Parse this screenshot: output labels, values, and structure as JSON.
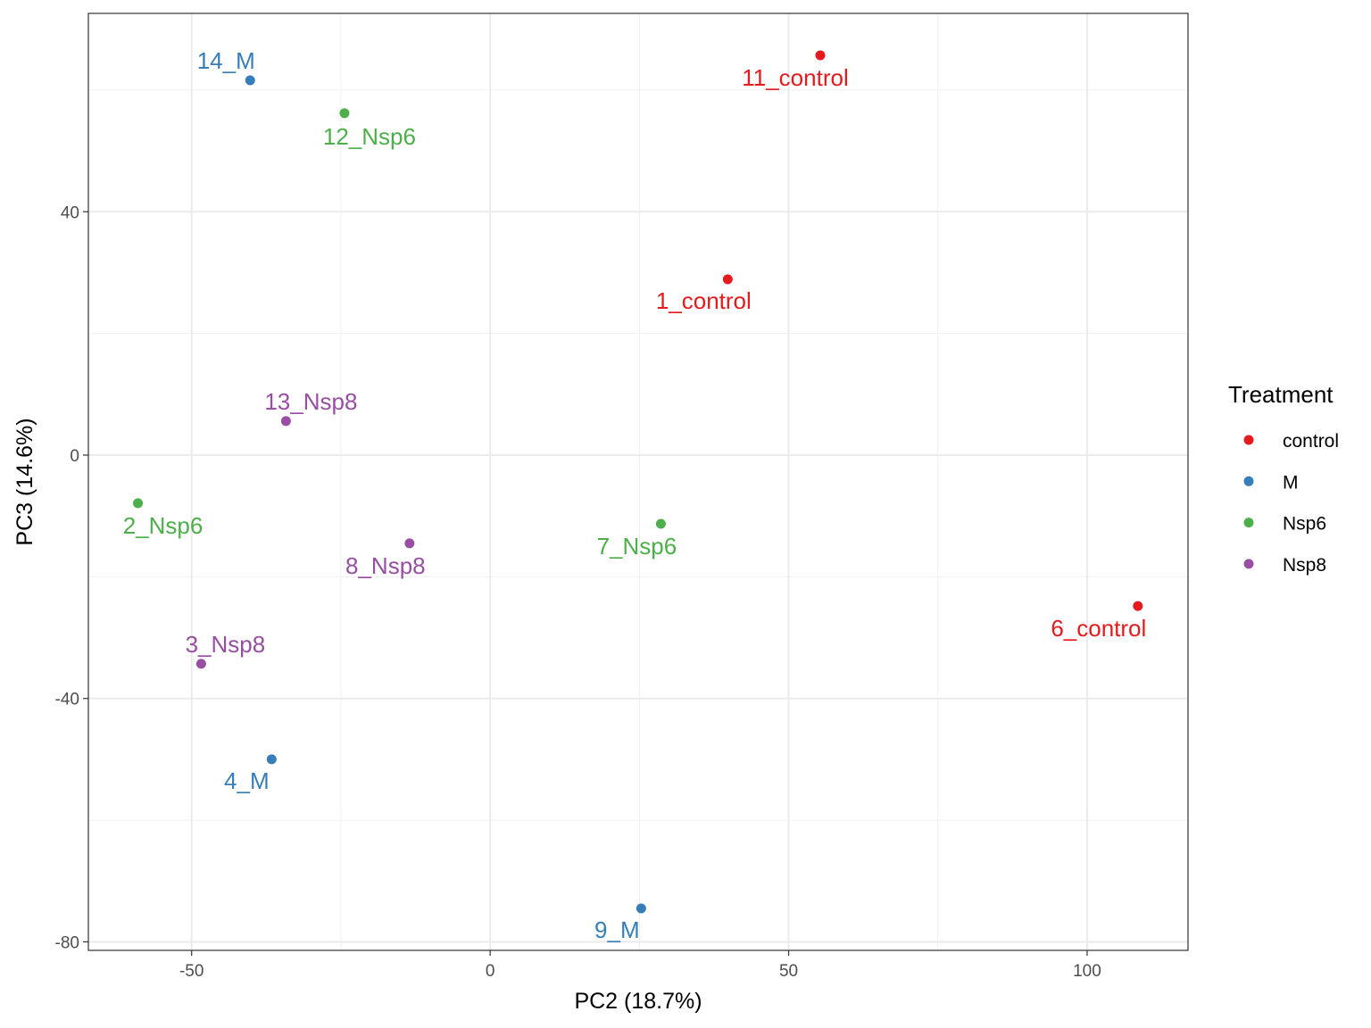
{
  "chart_data": {
    "type": "scatter",
    "title": "",
    "xlabel": "PC2 (18.7%)",
    "ylabel": "PC3 (14.6%)",
    "xlim": [
      -67.3,
      116.9
    ],
    "ylim": [
      -81.4,
      72.6
    ],
    "xticks": [
      -50,
      0,
      50,
      100
    ],
    "yticks": [
      -80,
      -40,
      0,
      40
    ],
    "xminor": [
      -25,
      25,
      75
    ],
    "yminor": [
      -60,
      -20,
      20,
      60
    ],
    "grid": true,
    "legend": {
      "title": "Treatment",
      "placement": "right",
      "entries": [
        {
          "name": "control",
          "color": "#E41A1C"
        },
        {
          "name": "M",
          "color": "#377EB8"
        },
        {
          "name": "Nsp6",
          "color": "#4DAF4A"
        },
        {
          "name": "Nsp8",
          "color": "#984EA3"
        }
      ]
    },
    "points": [
      {
        "label": "14_M",
        "group": "M",
        "x": -40.2,
        "y": 61.6
      },
      {
        "label": "12_Nsp6",
        "group": "Nsp6",
        "x": -24.4,
        "y": 56.2
      },
      {
        "label": "11_control",
        "group": "control",
        "x": 55.3,
        "y": 65.7
      },
      {
        "label": "1_control",
        "group": "control",
        "x": 39.8,
        "y": 28.9
      },
      {
        "label": "13_Nsp8",
        "group": "Nsp8",
        "x": -34.2,
        "y": 5.6
      },
      {
        "label": "2_Nsp6",
        "group": "Nsp6",
        "x": -59.0,
        "y": -7.9
      },
      {
        "label": "8_Nsp8",
        "group": "Nsp8",
        "x": -13.5,
        "y": -14.5
      },
      {
        "label": "7_Nsp6",
        "group": "Nsp6",
        "x": 28.6,
        "y": -11.3
      },
      {
        "label": "6_control",
        "group": "control",
        "x": 108.5,
        "y": -24.8
      },
      {
        "label": "3_Nsp8",
        "group": "Nsp8",
        "x": -48.4,
        "y": -34.3
      },
      {
        "label": "4_M",
        "group": "M",
        "x": -36.6,
        "y": -50.0
      },
      {
        "label": "9_M",
        "group": "M",
        "x": 25.3,
        "y": -74.5
      }
    ]
  }
}
